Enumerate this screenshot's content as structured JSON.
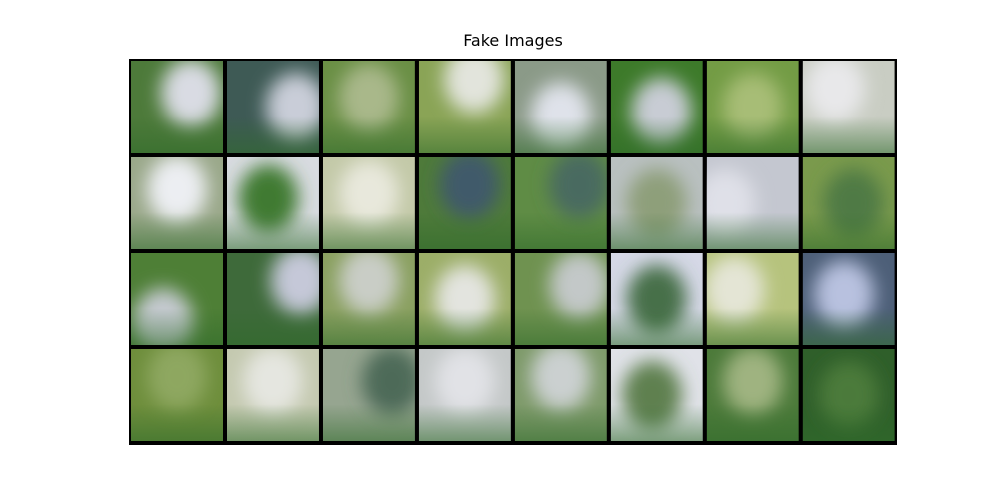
{
  "title": "Fake Images"
}
